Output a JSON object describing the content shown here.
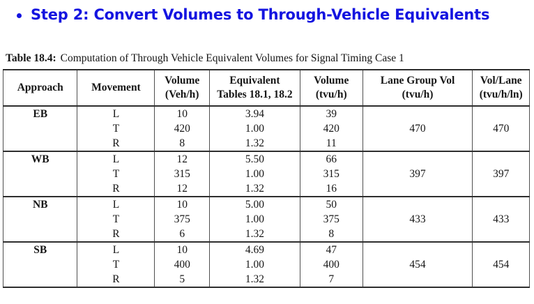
{
  "title": {
    "bullet": "•",
    "text": "Step 2: Convert Volumes to Through-Vehicle Equivalents",
    "color": "#1414e0"
  },
  "caption": {
    "label": "Table 18.4:",
    "text": "Computation of Through Vehicle Equivalent Volumes for Signal Timing Case 1"
  },
  "table": {
    "columns": [
      {
        "line1": "Approach",
        "line2": ""
      },
      {
        "line1": "Movement",
        "line2": ""
      },
      {
        "line1": "Volume",
        "line2": "(Veh/h)"
      },
      {
        "line1": "Equivalent",
        "line2": "Tables 18.1, 18.2"
      },
      {
        "line1": "Volume",
        "line2": "(tvu/h)"
      },
      {
        "line1": "Lane Group Vol",
        "line2": "(tvu/h)"
      },
      {
        "line1": "Vol/Lane",
        "line2": "(tvu/h/ln)"
      }
    ],
    "groups": [
      {
        "approach": "EB",
        "rows": [
          {
            "movement": "L",
            "vol_veh": "10",
            "equivalent": "3.94",
            "vol_tvu": "39"
          },
          {
            "movement": "T",
            "vol_veh": "420",
            "equivalent": "1.00",
            "vol_tvu": "420"
          },
          {
            "movement": "R",
            "vol_veh": "8",
            "equivalent": "1.32",
            "vol_tvu": "11"
          }
        ],
        "lane_group_vol": "470",
        "vol_per_lane": "470"
      },
      {
        "approach": "WB",
        "rows": [
          {
            "movement": "L",
            "vol_veh": "12",
            "equivalent": "5.50",
            "vol_tvu": "66"
          },
          {
            "movement": "T",
            "vol_veh": "315",
            "equivalent": "1.00",
            "vol_tvu": "315"
          },
          {
            "movement": "R",
            "vol_veh": "12",
            "equivalent": "1.32",
            "vol_tvu": "16"
          }
        ],
        "lane_group_vol": "397",
        "vol_per_lane": "397"
      },
      {
        "approach": "NB",
        "rows": [
          {
            "movement": "L",
            "vol_veh": "10",
            "equivalent": "5.00",
            "vol_tvu": "50"
          },
          {
            "movement": "T",
            "vol_veh": "375",
            "equivalent": "1.00",
            "vol_tvu": "375"
          },
          {
            "movement": "R",
            "vol_veh": "6",
            "equivalent": "1.32",
            "vol_tvu": "8"
          }
        ],
        "lane_group_vol": "433",
        "vol_per_lane": "433"
      },
      {
        "approach": "SB",
        "rows": [
          {
            "movement": "L",
            "vol_veh": "10",
            "equivalent": "4.69",
            "vol_tvu": "47"
          },
          {
            "movement": "T",
            "vol_veh": "400",
            "equivalent": "1.00",
            "vol_tvu": "400"
          },
          {
            "movement": "R",
            "vol_veh": "5",
            "equivalent": "1.32",
            "vol_tvu": "7"
          }
        ],
        "lane_group_vol": "454",
        "vol_per_lane": "454"
      }
    ]
  }
}
